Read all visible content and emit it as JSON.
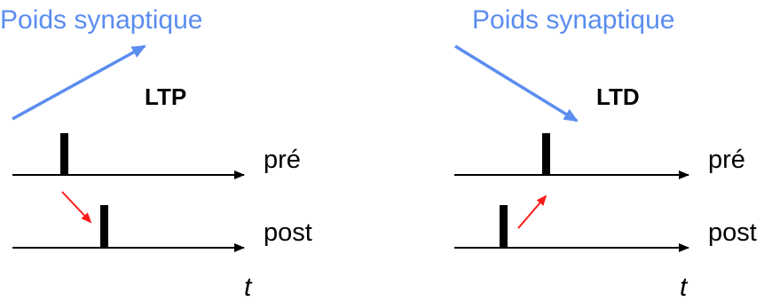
{
  "colors": {
    "weight_arrow": "#5b8def",
    "causal_arrow": "#ff1a1a",
    "trace": "#000000"
  },
  "panels": [
    {
      "id": "ltp",
      "weight_label": "Poids synaptique",
      "weight_direction": "increase",
      "title": "LTP",
      "pre_label": "pré",
      "post_label": "post",
      "time_label": "t",
      "spike_order": "pre-before-post"
    },
    {
      "id": "ltd",
      "weight_label": "Poids synaptique",
      "weight_direction": "decrease",
      "title": "LTD",
      "pre_label": "pré",
      "post_label": "post",
      "time_label": "t",
      "spike_order": "post-before-pre"
    }
  ]
}
